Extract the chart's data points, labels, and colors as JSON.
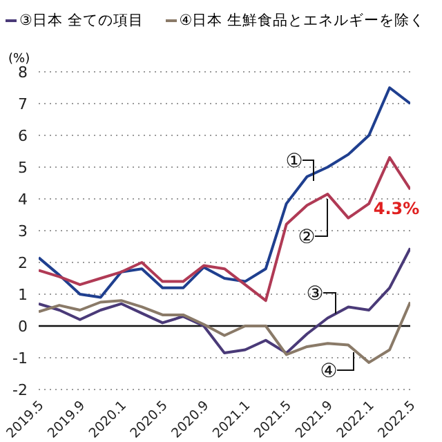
{
  "chart_data": {
    "type": "line",
    "ylabel": "(%)",
    "categories": [
      "2019.5",
      null,
      "2019.9",
      null,
      "2020.1",
      null,
      "2020.5",
      null,
      "2020.9",
      null,
      "2021.1",
      null,
      "2021.5",
      null,
      "2021.9",
      null,
      "2022.1",
      null,
      "2022.5"
    ],
    "series": [
      {
        "color": "#1f3f8f",
        "values": [
          2.15,
          1.6,
          1.0,
          0.9,
          1.7,
          1.8,
          1.2,
          1.2,
          1.85,
          1.5,
          1.4,
          1.8,
          3.85,
          4.7,
          5.0,
          5.4,
          6.0,
          7.5,
          7.0
        ]
      },
      {
        "color": "#b03a55",
        "values": [
          1.75,
          1.55,
          1.3,
          1.5,
          1.7,
          2.0,
          1.4,
          1.4,
          1.9,
          1.8,
          1.3,
          0.8,
          3.2,
          3.8,
          4.15,
          3.4,
          3.85,
          5.3,
          4.3
        ]
      },
      {
        "name": "③日本 全ての項目",
        "color": "#4a3a78",
        "values": [
          0.7,
          0.5,
          0.2,
          0.5,
          0.7,
          0.4,
          0.1,
          0.3,
          0.0,
          -0.85,
          -0.75,
          -0.45,
          -0.85,
          -0.25,
          0.25,
          0.6,
          0.5,
          1.2,
          2.45
        ]
      },
      {
        "name": "④日本 生鮮食品とエネルギーを除く",
        "color": "#8a7a68",
        "values": [
          0.45,
          0.65,
          0.5,
          0.75,
          0.8,
          0.6,
          0.35,
          0.35,
          0.05,
          -0.3,
          0.0,
          0.0,
          -0.9,
          -0.65,
          -0.55,
          -0.6,
          -1.15,
          -0.75,
          0.75
        ]
      }
    ],
    "ylim": [
      -2,
      8
    ],
    "yticks": [
      -2,
      -1,
      0,
      1,
      2,
      3,
      4,
      5,
      6,
      7,
      8
    ],
    "grid": "y",
    "legend": "top",
    "line_style": "solid",
    "marker": "none",
    "annotations": [
      "①",
      "②",
      "③",
      "④",
      {
        "text": "4.3%",
        "x": "2022.5",
        "y": 4.3
      }
    ]
  }
}
